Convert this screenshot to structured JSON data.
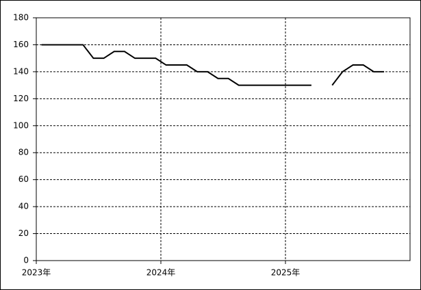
{
  "chart_data": {
    "type": "line",
    "categories": [
      "2023年",
      null,
      null,
      null,
      null,
      null,
      null,
      null,
      null,
      null,
      null,
      null,
      "2024年",
      null,
      null,
      null,
      null,
      null,
      null,
      null,
      null,
      null,
      null,
      null,
      "2025年",
      null,
      null,
      null,
      null,
      null,
      null,
      null,
      null,
      null,
      null,
      null
    ],
    "series": [
      {
        "color": "#000000",
        "values": [
          160,
          160,
          160,
          160,
          160,
          150,
          150,
          155,
          155,
          150,
          150,
          150,
          145,
          145,
          145,
          140,
          140,
          135,
          135,
          130,
          130,
          130,
          130,
          130,
          130,
          130,
          130,
          null,
          130,
          140,
          145,
          145,
          140,
          140,
          null,
          null
        ]
      }
    ],
    "ylim": [
      0,
      180
    ],
    "yticks": [
      0,
      20,
      40,
      60,
      80,
      100,
      120,
      140,
      160,
      180
    ],
    "grid": true
  }
}
